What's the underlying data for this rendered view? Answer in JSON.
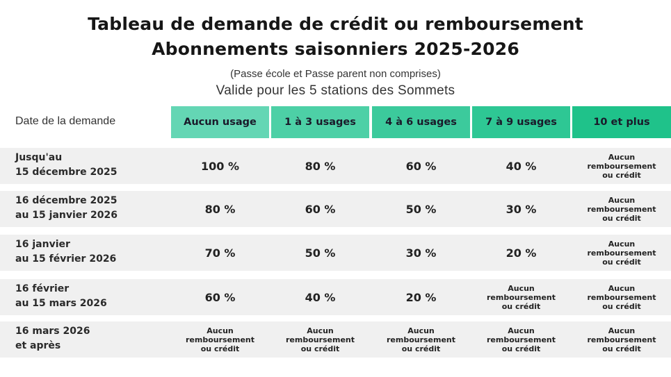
{
  "title_line1": "Tableau de demande de crédit ou remboursement",
  "title_line2": "Abonnements saisonniers 2025-2026",
  "note": "(Passe école et Passe parent non comprises)",
  "valid": "Valide pour les 5 stations des Sommets",
  "header_label": "Date de la demande",
  "columns": [
    {
      "label": "Aucun usage",
      "color": "#64d6b4"
    },
    {
      "label": "1 à 3 usages",
      "color": "#4dd0a6"
    },
    {
      "label": "4 à 6 usages",
      "color": "#3cca9c"
    },
    {
      "label": "7 à 9 usages",
      "color": "#2ec794"
    },
    {
      "label": "10 et plus",
      "color": "#1fc28a"
    }
  ],
  "rows": [
    {
      "date_l1": "Jusqu'au",
      "date_l2": "15 décembre 2025",
      "values": [
        "100 %",
        "80 %",
        "60 %",
        "40 %",
        null
      ]
    },
    {
      "date_l1": "16 décembre 2025",
      "date_l2": "au 15 janvier 2026",
      "values": [
        "80 %",
        "60 %",
        "50 %",
        "30 %",
        null
      ]
    },
    {
      "date_l1": "16 janvier",
      "date_l2": "au 15 février 2026",
      "values": [
        "70 %",
        "50 %",
        "30 %",
        "20 %",
        null
      ]
    },
    {
      "date_l1": "16 février",
      "date_l2": "au 15 mars 2026",
      "values": [
        "60 %",
        "40 %",
        "20 %",
        null,
        null
      ]
    },
    {
      "date_l1": "16 mars 2026",
      "date_l2": "et après",
      "values": [
        null,
        null,
        null,
        null,
        null
      ]
    }
  ],
  "no_refund": {
    "l1": "Aucun",
    "l2": "remboursement",
    "l3": "ou crédit"
  }
}
